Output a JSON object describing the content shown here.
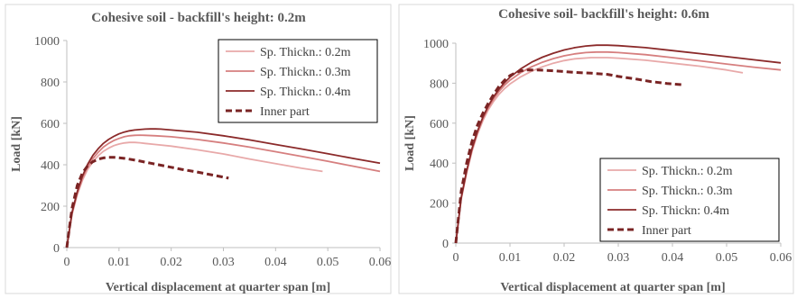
{
  "chart_data": [
    {
      "type": "line",
      "title": "Cohesive soil - backfill's height: 0.2m",
      "xlabel": "Vertical displacement at quarter span [m]",
      "ylabel": "Load  [kN]",
      "xlim": [
        0,
        0.06
      ],
      "ylim": [
        0,
        1000
      ],
      "xticks": [
        "0",
        "0.01",
        "0.02",
        "0.03",
        "0.04",
        "0.05",
        "0.06"
      ],
      "yticks": [
        "0",
        "200",
        "400",
        "600",
        "800",
        "1000"
      ],
      "grid": "none",
      "legend_position": "top-right",
      "series": [
        {
          "name": "Sp. Thickn.: 0.2m",
          "color": "#e8a9a9",
          "dash": "solid",
          "x": [
            0,
            0.001,
            0.002,
            0.003,
            0.004,
            0.005,
            0.006,
            0.007,
            0.008,
            0.009,
            0.01,
            0.011,
            0.012,
            0.013,
            0.014,
            0.015,
            0.017,
            0.02,
            0.025,
            0.03,
            0.035,
            0.04,
            0.045,
            0.049
          ],
          "y": [
            0,
            160,
            255,
            325,
            378,
            415,
            443,
            465,
            480,
            492,
            500,
            505,
            508,
            508,
            506,
            503,
            498,
            490,
            472,
            452,
            428,
            405,
            383,
            368
          ]
        },
        {
          "name": "Sp. Thickn.: 0.3m",
          "color": "#d67f7f",
          "dash": "solid",
          "x": [
            0,
            0.001,
            0.002,
            0.003,
            0.004,
            0.005,
            0.006,
            0.007,
            0.008,
            0.009,
            0.01,
            0.011,
            0.012,
            0.013,
            0.014,
            0.015,
            0.017,
            0.02,
            0.025,
            0.03,
            0.035,
            0.04,
            0.045,
            0.05,
            0.055,
            0.06
          ],
          "y": [
            0,
            165,
            262,
            335,
            390,
            430,
            460,
            485,
            503,
            517,
            527,
            535,
            540,
            542,
            543,
            542,
            540,
            535,
            522,
            505,
            485,
            463,
            440,
            417,
            392,
            368
          ]
        },
        {
          "name": "Sp. Thickn.: 0.4m",
          "color": "#8b2a2a",
          "dash": "solid",
          "x": [
            0,
            0.001,
            0.002,
            0.003,
            0.004,
            0.005,
            0.006,
            0.007,
            0.008,
            0.009,
            0.01,
            0.011,
            0.012,
            0.013,
            0.014,
            0.015,
            0.016,
            0.017,
            0.018,
            0.02,
            0.025,
            0.03,
            0.035,
            0.04,
            0.045,
            0.05,
            0.055,
            0.06
          ],
          "y": [
            0,
            170,
            270,
            345,
            402,
            445,
            477,
            503,
            522,
            537,
            549,
            558,
            564,
            568,
            570,
            572,
            573,
            573,
            572,
            568,
            557,
            540,
            520,
            498,
            476,
            453,
            430,
            408
          ]
        },
        {
          "name": "Inner part",
          "color": "#7a2424",
          "dash": "dashed",
          "x": [
            0,
            0.001,
            0.002,
            0.003,
            0.004,
            0.005,
            0.006,
            0.007,
            0.008,
            0.009,
            0.01,
            0.011,
            0.012,
            0.014,
            0.016,
            0.018,
            0.02,
            0.022,
            0.025,
            0.028,
            0.031
          ],
          "y": [
            0,
            190,
            300,
            360,
            395,
            415,
            427,
            433,
            436,
            436,
            434,
            431,
            427,
            418,
            408,
            398,
            388,
            378,
            365,
            350,
            335
          ]
        }
      ]
    },
    {
      "type": "line",
      "title": "Cohesive soil- backfill's height: 0.6m",
      "xlabel": "Vertical displacement at quarter span [m]",
      "ylabel": "Load  [kN]",
      "xlim": [
        0,
        0.06
      ],
      "ylim": [
        0,
        1000
      ],
      "xticks": [
        "0",
        "0.01",
        "0.02",
        "0.03",
        "0.04",
        "0.05",
        "0.06"
      ],
      "yticks": [
        "0",
        "200",
        "400",
        "600",
        "800",
        "1000"
      ],
      "grid": "none",
      "legend_position": "bottom-right",
      "series": [
        {
          "name": "Sp. Thickn.: 0.2m",
          "color": "#e8a9a9",
          "dash": "solid",
          "x": [
            0,
            0.001,
            0.002,
            0.003,
            0.004,
            0.005,
            0.006,
            0.007,
            0.008,
            0.009,
            0.01,
            0.012,
            0.014,
            0.016,
            0.018,
            0.02,
            0.022,
            0.025,
            0.028,
            0.03,
            0.035,
            0.04,
            0.045,
            0.05,
            0.053
          ],
          "y": [
            0,
            220,
            350,
            460,
            545,
            613,
            667,
            710,
            745,
            773,
            796,
            832,
            860,
            882,
            900,
            913,
            922,
            928,
            928,
            925,
            915,
            900,
            885,
            866,
            852
          ]
        },
        {
          "name": "Sp. Thickn.: 0.3m",
          "color": "#d67f7f",
          "dash": "solid",
          "x": [
            0,
            0.001,
            0.002,
            0.003,
            0.004,
            0.005,
            0.006,
            0.007,
            0.008,
            0.009,
            0.01,
            0.012,
            0.014,
            0.016,
            0.018,
            0.02,
            0.022,
            0.024,
            0.026,
            0.028,
            0.03,
            0.035,
            0.04,
            0.045,
            0.05,
            0.055,
            0.06
          ],
          "y": [
            0,
            225,
            357,
            468,
            554,
            622,
            678,
            723,
            760,
            790,
            815,
            853,
            882,
            905,
            923,
            937,
            947,
            953,
            956,
            956,
            953,
            943,
            928,
            912,
            896,
            880,
            866
          ]
        },
        {
          "name": "Sp. Thickn: 0.4m",
          "color": "#8b2a2a",
          "dash": "solid",
          "x": [
            0,
            0.001,
            0.002,
            0.003,
            0.004,
            0.005,
            0.006,
            0.007,
            0.008,
            0.009,
            0.01,
            0.012,
            0.014,
            0.016,
            0.018,
            0.02,
            0.022,
            0.024,
            0.026,
            0.028,
            0.03,
            0.035,
            0.04,
            0.045,
            0.05,
            0.055,
            0.06
          ],
          "y": [
            0,
            228,
            362,
            474,
            560,
            630,
            687,
            733,
            771,
            803,
            830,
            872,
            905,
            930,
            950,
            966,
            978,
            986,
            990,
            990,
            988,
            978,
            963,
            948,
            933,
            917,
            902
          ]
        },
        {
          "name": "Inner part",
          "color": "#7a2424",
          "dash": "dashed",
          "x": [
            0,
            0.001,
            0.002,
            0.003,
            0.004,
            0.005,
            0.006,
            0.007,
            0.008,
            0.009,
            0.01,
            0.011,
            0.012,
            0.013,
            0.015,
            0.018,
            0.02,
            0.022,
            0.025,
            0.028,
            0.03,
            0.033,
            0.036,
            0.039,
            0.042
          ],
          "y": [
            0,
            260,
            400,
            510,
            590,
            650,
            700,
            745,
            785,
            815,
            838,
            852,
            862,
            866,
            866,
            862,
            858,
            854,
            850,
            844,
            834,
            822,
            808,
            798,
            792
          ]
        }
      ]
    }
  ]
}
